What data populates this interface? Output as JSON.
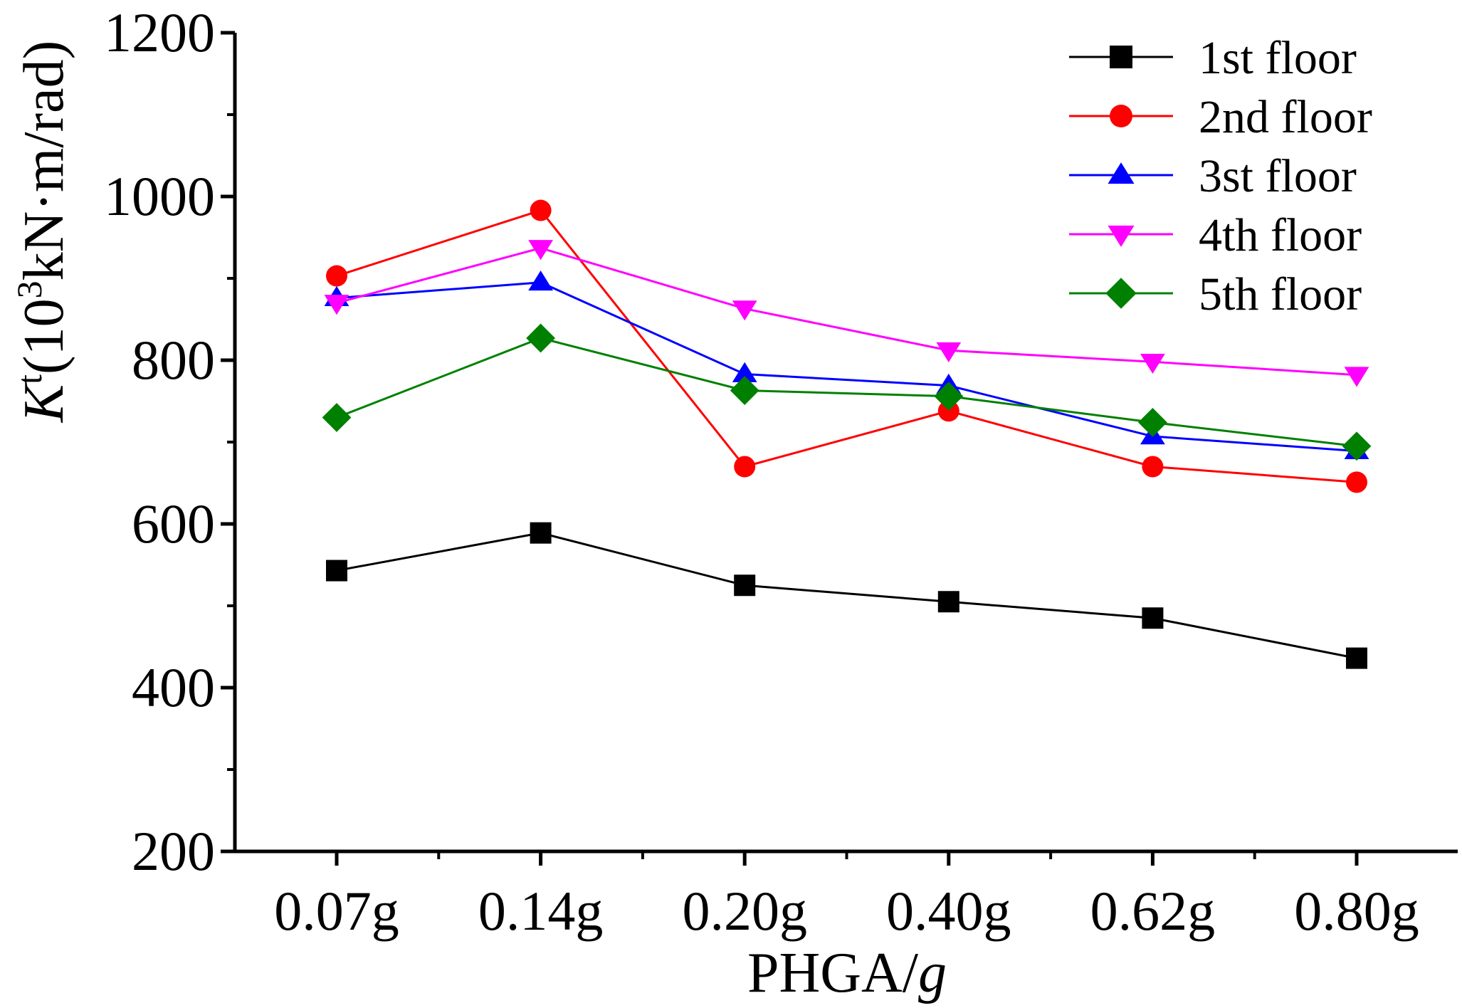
{
  "chart_data": {
    "type": "line",
    "categories": [
      "0.07g",
      "0.14g",
      "0.20g",
      "0.40g",
      "0.62g",
      "0.80g"
    ],
    "xlabel": {
      "text": "PHGA/",
      "italic_suffix": "g"
    },
    "ylabel": {
      "symbol": "K",
      "superscript": "t",
      "open": "(10",
      "exp": "3",
      "unit": "kN·m/rad)"
    },
    "ylim": [
      200,
      1200
    ],
    "yticks": [
      "200",
      "400",
      "600",
      "800",
      "1000",
      "1200"
    ],
    "grid": false,
    "legend_position": "top-right",
    "series": [
      {
        "name": "1st floor",
        "color": "#000000",
        "marker": "square",
        "values": [
          543,
          589,
          525,
          505,
          485,
          436
        ]
      },
      {
        "name": "2nd floor",
        "color": "#ff0000",
        "marker": "circle",
        "values": [
          903,
          983,
          670,
          738,
          670,
          651
        ]
      },
      {
        "name": "3st floor",
        "color": "#0000ff",
        "marker": "triangle-up",
        "values": [
          876,
          895,
          783,
          769,
          707,
          689
        ]
      },
      {
        "name": "4th floor",
        "color": "#ff00ff",
        "marker": "triangle-down",
        "values": [
          870,
          937,
          863,
          812,
          798,
          782
        ]
      },
      {
        "name": "5th floor",
        "color": "#008000",
        "marker": "diamond",
        "values": [
          730,
          827,
          763,
          756,
          724,
          695
        ]
      }
    ]
  }
}
